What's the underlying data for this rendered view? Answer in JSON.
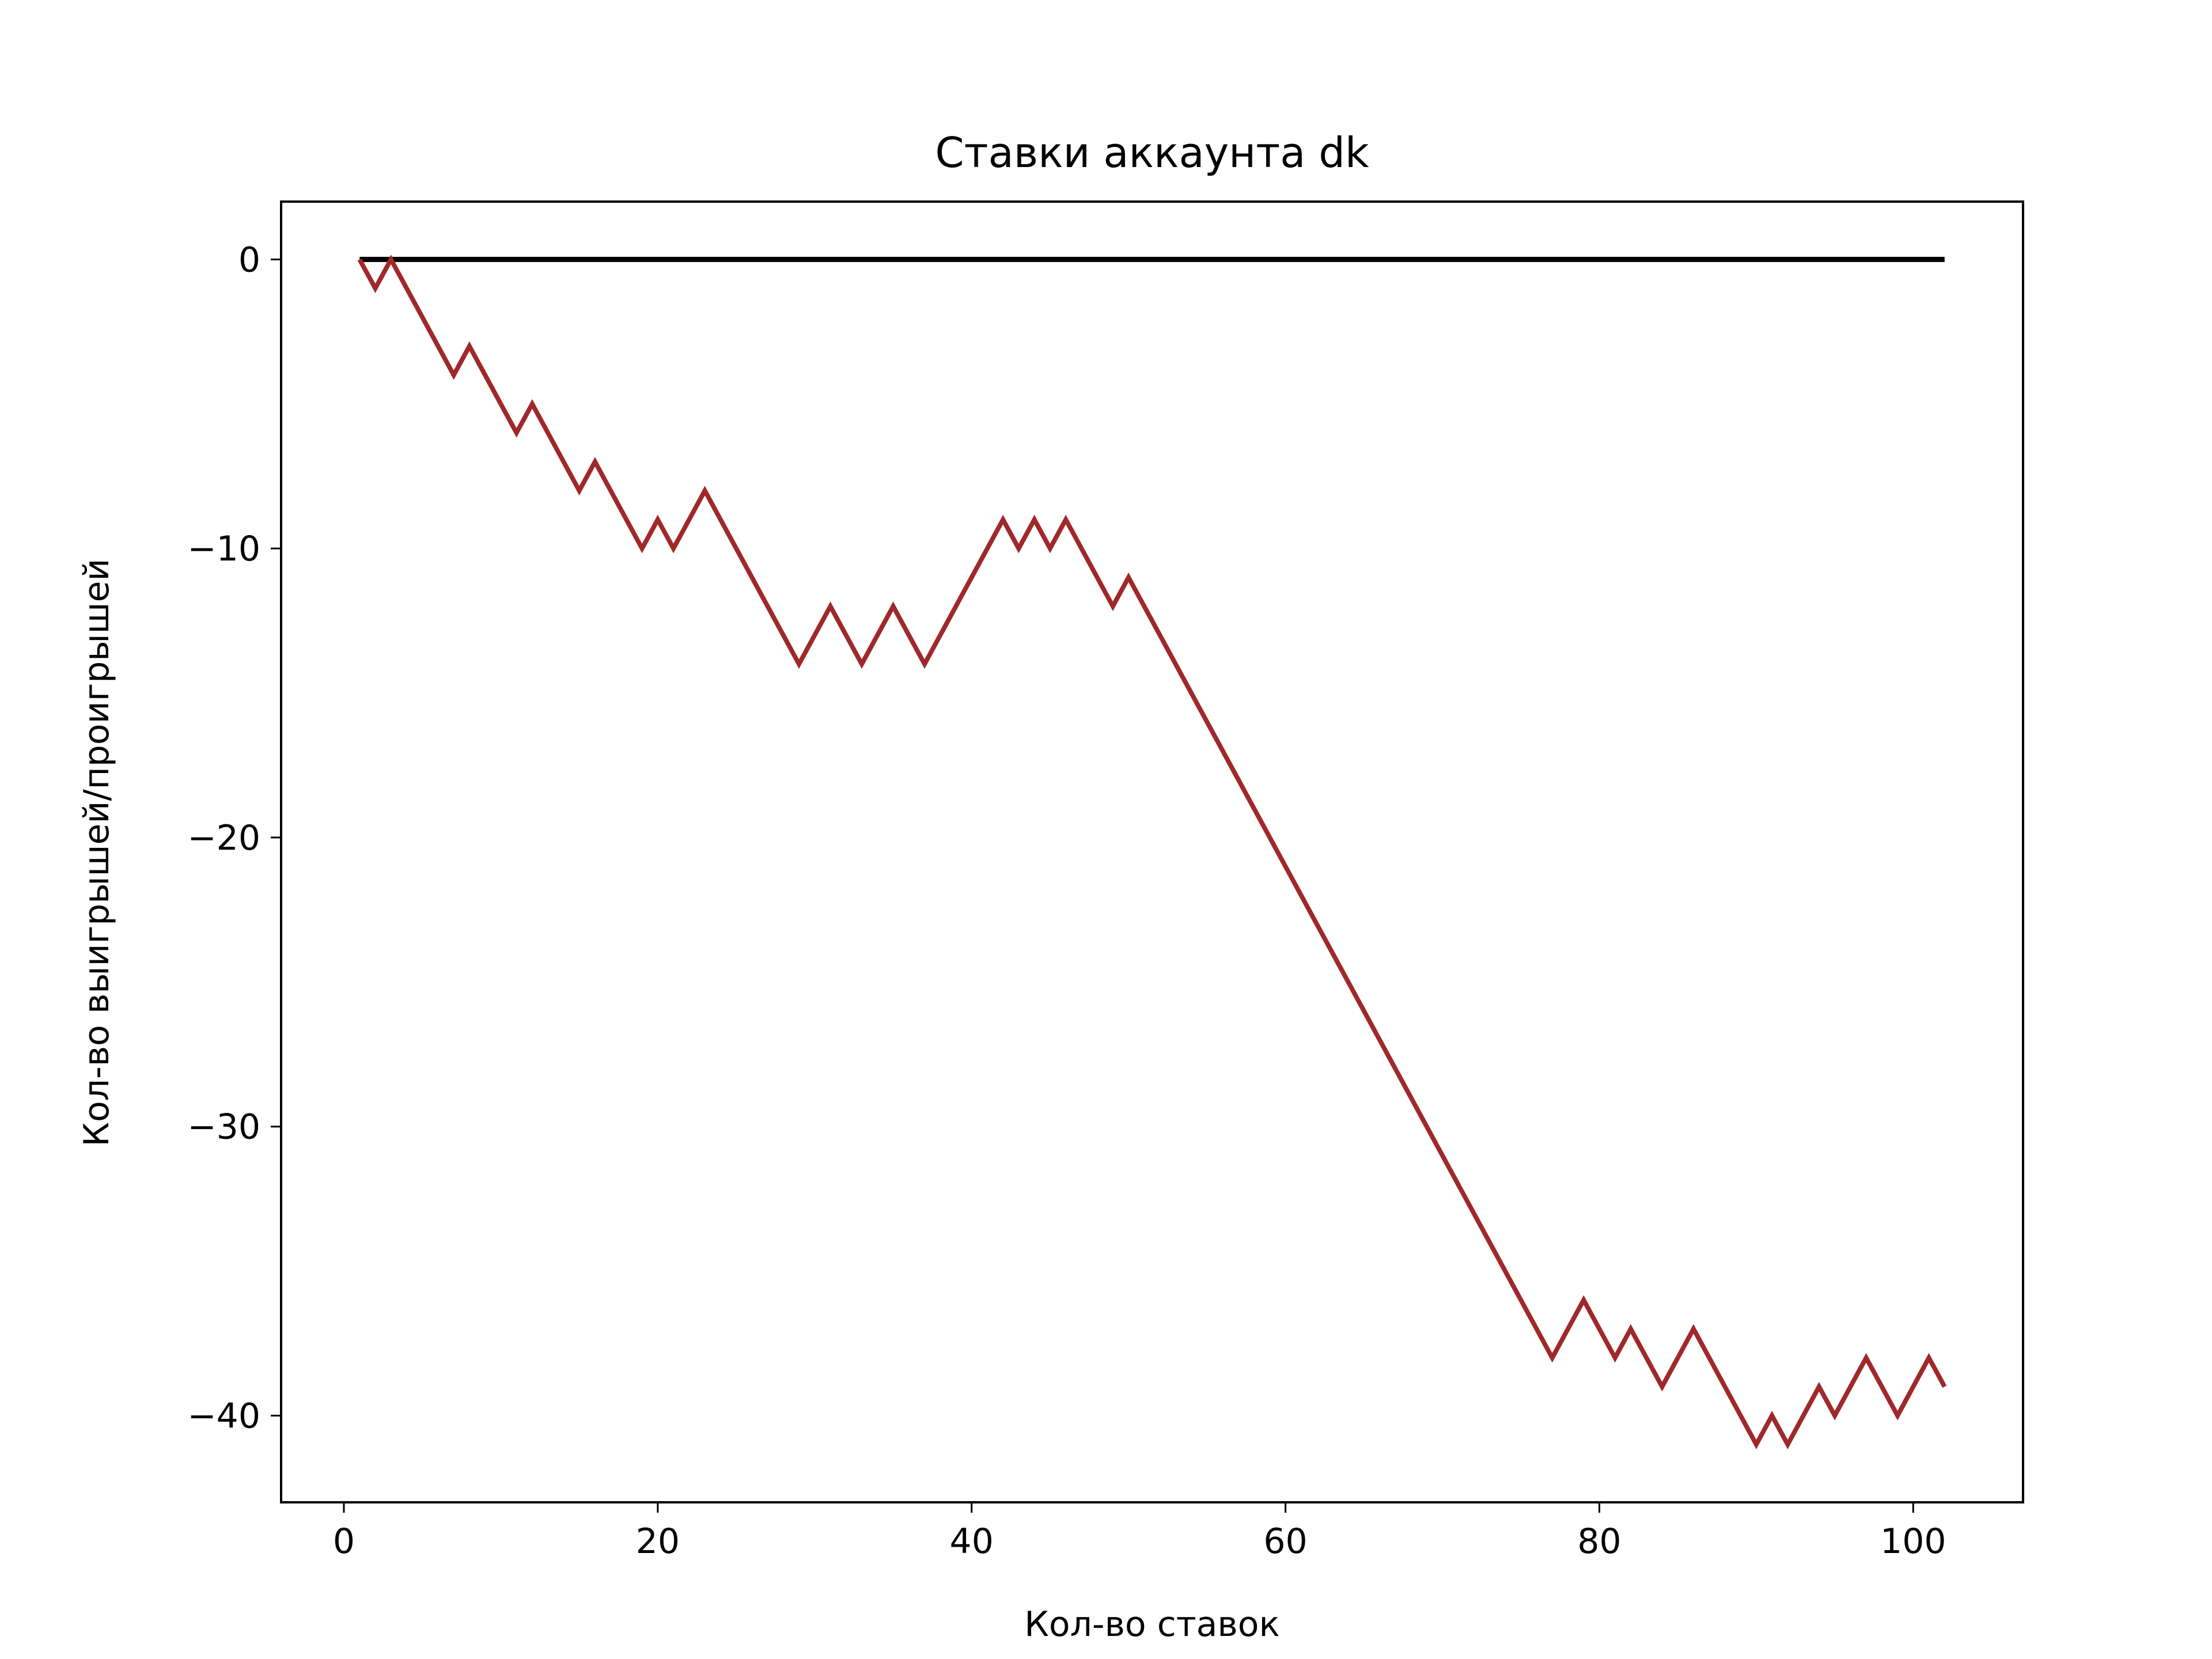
{
  "chart_data": {
    "type": "line",
    "title": "Ставки аккаунта dk",
    "xlabel": "Кол-во ставок",
    "ylabel": "Кол-во выигрышей/проигрышей",
    "xlim": [
      -4,
      107
    ],
    "ylim": [
      -43,
      2
    ],
    "xticks": [
      0,
      20,
      40,
      60,
      80,
      100
    ],
    "yticks": [
      0,
      -10,
      -20,
      -30,
      -40
    ],
    "xtick_labels": [
      "0",
      "20",
      "40",
      "60",
      "80",
      "100"
    ],
    "ytick_labels": [
      "0",
      "−10",
      "−20",
      "−30",
      "−40"
    ],
    "grid": false,
    "series": [
      {
        "color": "#000000",
        "x": [
          1,
          102
        ],
        "y": [
          0,
          0
        ]
      },
      {
        "color": "#a0282a",
        "x": [
          1,
          2,
          3,
          7,
          8,
          11,
          12,
          15,
          16,
          19,
          20,
          21,
          23,
          29,
          31,
          33,
          35,
          37,
          42,
          43,
          44,
          45,
          46,
          49,
          50,
          77,
          79,
          81,
          82,
          84,
          86,
          90,
          91,
          92,
          94,
          95,
          97,
          99,
          101,
          102
        ],
        "y": [
          0,
          -1,
          0,
          -4,
          -3,
          -6,
          -5,
          -8,
          -7,
          -10,
          -9,
          -10,
          -8,
          -14,
          -12,
          -14,
          -12,
          -14,
          -9,
          -10,
          -9,
          -10,
          -9,
          -12,
          -11,
          -38,
          -36,
          -38,
          -37,
          -39,
          -37,
          -41,
          -40,
          -41,
          -39,
          -40,
          -38,
          -40,
          -38,
          -39
        ]
      }
    ]
  }
}
